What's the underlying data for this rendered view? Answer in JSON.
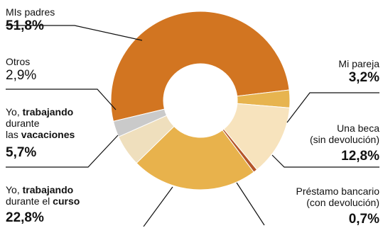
{
  "chart_data": {
    "type": "pie",
    "donut": true,
    "slices": [
      {
        "label": "MIs padres",
        "value": 51.8,
        "display": "51,8%",
        "color": "#d27521"
      },
      {
        "label": "Mi pareja",
        "value": 3.2,
        "display": "3,2%",
        "color": "#e7b44f"
      },
      {
        "label": "Una beca (sin devolución)",
        "value": 12.8,
        "display": "12,8%",
        "color": "#f7e3bd"
      },
      {
        "label": "Préstamo bancario (con devolución)",
        "value": 0.7,
        "display": "0,7%",
        "color": "#b5562a"
      },
      {
        "label": "Yo, trabajando durante el curso",
        "value": 22.8,
        "display": "22,8%",
        "color": "#e8b24c"
      },
      {
        "label": "Yo, trabajando durante las vacaciones",
        "value": 5.7,
        "display": "5,7%",
        "color": "#efdfbd"
      },
      {
        "label": "Otros",
        "value": 2.9,
        "display": "2,9%",
        "color": "#cacaca"
      }
    ]
  },
  "labels": {
    "padres": {
      "name": "MIs padres",
      "pct": "51,8%"
    },
    "pareja": {
      "name": "Mi pareja",
      "pct": "3,2%"
    },
    "beca": {
      "line1": "Una beca",
      "line2": "(sin devolución)",
      "pct": "12,8%"
    },
    "prestamo": {
      "line1": "Préstamo bancario",
      "line2": "(con devolución)",
      "pct": "0,7%"
    },
    "otros": {
      "name": "Otros",
      "pct": "2,9%"
    },
    "vacaciones": {
      "w1": "Yo, ",
      "w2": "trabajando",
      "w3": "durante",
      "w4": "las ",
      "w5": "vacaciones",
      "pct": "5,7%"
    },
    "curso": {
      "w1": "Yo, ",
      "w2": "trabajando",
      "w3": "durante el ",
      "w4": "curso",
      "pct": "22,8%"
    }
  }
}
